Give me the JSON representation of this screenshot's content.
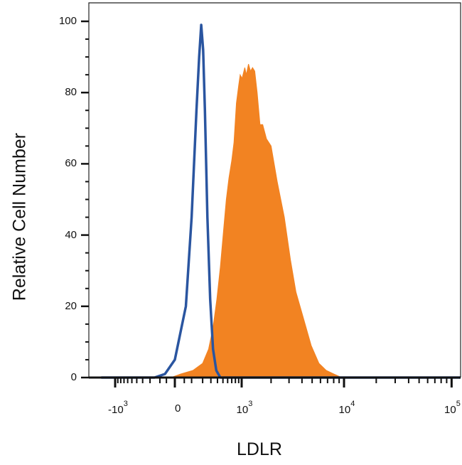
{
  "chart_data": {
    "type": "area",
    "xlabel": "LDLR",
    "ylabel": "Relative Cell Number",
    "x_scale": "biexponential",
    "ylim": [
      0,
      100
    ],
    "grid": false,
    "y_ticks": [
      0,
      20,
      40,
      60,
      80,
      100
    ],
    "y_tick_labels": [
      "0",
      "20",
      "40",
      "60",
      "80",
      "100"
    ],
    "x_ticks": [
      {
        "value": -1000,
        "base": "-10",
        "exp": "3"
      },
      {
        "value": 0,
        "base": "0",
        "exp": ""
      },
      {
        "value": 1000,
        "base": "10",
        "exp": "3"
      },
      {
        "value": 10000,
        "base": "10",
        "exp": "4"
      },
      {
        "value": 100000,
        "base": "10",
        "exp": "5"
      }
    ],
    "series": [
      {
        "style": "outline",
        "color": "#2a55a0",
        "points": [
          [
            -1700,
            0
          ],
          [
            -150,
            0
          ],
          [
            -60,
            1
          ],
          [
            0,
            5
          ],
          [
            60,
            20
          ],
          [
            100,
            45
          ],
          [
            140,
            75
          ],
          [
            165,
            90
          ],
          [
            185,
            99
          ],
          [
            205,
            92
          ],
          [
            225,
            75
          ],
          [
            255,
            45
          ],
          [
            290,
            22
          ],
          [
            330,
            8
          ],
          [
            380,
            2
          ],
          [
            450,
            0
          ],
          [
            130000,
            0
          ]
        ]
      },
      {
        "style": "filled",
        "color": "#f28322",
        "points": [
          [
            -1700,
            0
          ],
          [
            -20,
            0
          ],
          [
            30,
            1
          ],
          [
            110,
            2
          ],
          [
            200,
            4
          ],
          [
            270,
            8
          ],
          [
            330,
            14
          ],
          [
            390,
            22
          ],
          [
            450,
            31
          ],
          [
            510,
            41
          ],
          [
            570,
            50
          ],
          [
            630,
            56
          ],
          [
            700,
            61
          ],
          [
            760,
            66
          ],
          [
            830,
            77
          ],
          [
            900,
            82
          ],
          [
            950,
            85
          ],
          [
            1010,
            84
          ],
          [
            1080,
            87
          ],
          [
            1120,
            85
          ],
          [
            1180,
            88
          ],
          [
            1240,
            86
          ],
          [
            1300,
            87
          ],
          [
            1370,
            86
          ],
          [
            1450,
            80
          ],
          [
            1550,
            71
          ],
          [
            1650,
            71
          ],
          [
            1800,
            67
          ],
          [
            2000,
            65
          ],
          [
            2300,
            55
          ],
          [
            2700,
            45
          ],
          [
            3100,
            33
          ],
          [
            3500,
            24
          ],
          [
            4100,
            17
          ],
          [
            4900,
            9
          ],
          [
            5800,
            4
          ],
          [
            6800,
            2
          ],
          [
            8000,
            1
          ],
          [
            9500,
            0
          ],
          [
            130000,
            0
          ]
        ]
      }
    ]
  }
}
